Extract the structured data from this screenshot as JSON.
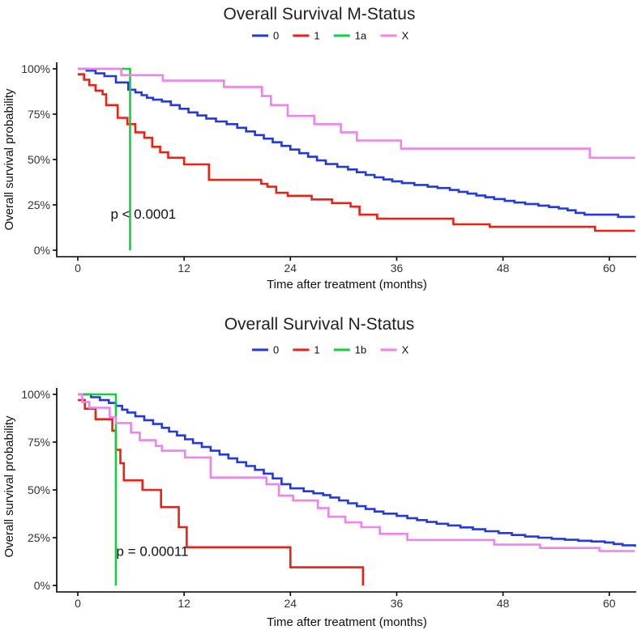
{
  "page": {
    "background": "#ffffff"
  },
  "chart_data": [
    {
      "type": "line",
      "chart_kind": "kaplan-meier-step-survival",
      "title": "Overall Survival M-Status",
      "xlabel": "Time after treatment (months)",
      "ylabel": "Overall survival probability",
      "x_ticks": [
        0,
        12,
        24,
        36,
        48,
        60
      ],
      "y_tick_labels": [
        "0%",
        "25%",
        "50%",
        "75%",
        "100%"
      ],
      "xlim": [
        -2.4,
        63.1
      ],
      "ylim": [
        0,
        100
      ],
      "grid": false,
      "legend_position": "top",
      "pvalue": {
        "text": "p < 0.0001",
        "x": 3.7,
        "y": 20
      },
      "series": [
        {
          "name": "0",
          "color": "#2238e3",
          "points": [
            [
              0,
              100
            ],
            [
              1,
              99
            ],
            [
              2,
              97.5
            ],
            [
              3,
              96
            ],
            [
              4.3,
              92.5
            ],
            [
              5.7,
              88.5
            ],
            [
              6.5,
              87
            ],
            [
              7.2,
              85.5
            ],
            [
              7.8,
              84
            ],
            [
              8.5,
              83
            ],
            [
              9.5,
              82
            ],
            [
              10.5,
              80
            ],
            [
              11.5,
              78
            ],
            [
              12.5,
              76
            ],
            [
              13.5,
              74.3
            ],
            [
              14.5,
              72.6
            ],
            [
              15.6,
              71
            ],
            [
              16.8,
              69.5
            ],
            [
              18,
              67.5
            ],
            [
              19,
              65.5
            ],
            [
              20,
              63.5
            ],
            [
              21,
              61.5
            ],
            [
              22,
              59.5
            ],
            [
              23,
              57.5
            ],
            [
              24,
              55.5
            ],
            [
              25,
              53.5
            ],
            [
              26,
              51.5
            ],
            [
              27,
              49.5
            ],
            [
              28,
              47.5
            ],
            [
              29.3,
              46
            ],
            [
              30.5,
              44.5
            ],
            [
              31.5,
              43
            ],
            [
              32.5,
              41.5
            ],
            [
              33.5,
              40.2
            ],
            [
              34.5,
              39
            ],
            [
              35.5,
              38
            ],
            [
              36.6,
              37
            ],
            [
              38,
              36
            ],
            [
              39.5,
              35
            ],
            [
              40.6,
              34.3
            ],
            [
              42,
              33.2
            ],
            [
              43,
              32.2
            ],
            [
              44,
              31.2
            ],
            [
              45,
              30.2
            ],
            [
              46,
              29.2
            ],
            [
              47,
              28.2
            ],
            [
              48.2,
              27.2
            ],
            [
              49.3,
              26.3
            ],
            [
              50.5,
              25.5
            ],
            [
              52,
              24.6
            ],
            [
              53.2,
              23.8
            ],
            [
              54.3,
              23
            ],
            [
              55.3,
              22
            ],
            [
              56.2,
              20.6
            ],
            [
              57.2,
              19.6
            ],
            [
              61,
              18.4
            ],
            [
              62.9,
              18.4
            ]
          ]
        },
        {
          "name": "1",
          "color": "#ef2011",
          "points": [
            [
              0,
              97
            ],
            [
              0.7,
              94
            ],
            [
              1.3,
              91
            ],
            [
              2,
              88
            ],
            [
              2.8,
              86
            ],
            [
              3.2,
              80
            ],
            [
              4.5,
              73
            ],
            [
              5.6,
              69.5
            ],
            [
              6.5,
              65
            ],
            [
              7.5,
              62
            ],
            [
              8.4,
              57
            ],
            [
              9.3,
              54
            ],
            [
              10.2,
              51
            ],
            [
              12,
              47.3
            ],
            [
              14.8,
              38.8
            ],
            [
              20.7,
              36.6
            ],
            [
              21.4,
              35
            ],
            [
              22.4,
              31.7
            ],
            [
              23.7,
              30
            ],
            [
              26.4,
              28
            ],
            [
              28.7,
              26
            ],
            [
              30.8,
              24
            ],
            [
              31.8,
              19.6
            ],
            [
              33.8,
              17.4
            ],
            [
              42.4,
              14.3
            ],
            [
              46.5,
              12.9
            ],
            [
              58.4,
              10.7
            ],
            [
              62.9,
              10.7
            ]
          ]
        },
        {
          "name": "1a",
          "color": "#0cd33c",
          "points": [
            [
              0,
              100
            ],
            [
              5.9,
              0
            ]
          ]
        },
        {
          "name": "X",
          "color": "#ee82ee",
          "points": [
            [
              0,
              100
            ],
            [
              4.9,
              96.5
            ],
            [
              9.6,
              93.5
            ],
            [
              16.5,
              90
            ],
            [
              20.8,
              85
            ],
            [
              21.8,
              80
            ],
            [
              23.7,
              74
            ],
            [
              26.7,
              69.5
            ],
            [
              29.7,
              65
            ],
            [
              31.5,
              60.5
            ],
            [
              36.5,
              56
            ],
            [
              57.8,
              51
            ],
            [
              62.9,
              51
            ]
          ]
        }
      ]
    },
    {
      "type": "line",
      "chart_kind": "kaplan-meier-step-survival",
      "title": "Overall Survival N-Status",
      "xlabel": "Time after treatment (months)",
      "ylabel": "Overall survival probability",
      "x_ticks": [
        0,
        12,
        24,
        36,
        48,
        60
      ],
      "y_tick_labels": [
        "0%",
        "25%",
        "50%",
        "75%",
        "100%"
      ],
      "xlim": [
        -2.4,
        63.1
      ],
      "ylim": [
        0,
        100
      ],
      "grid": false,
      "legend_position": "top",
      "pvalue": {
        "text": "p = 0.00011",
        "x": 4.35,
        "y": 18
      },
      "series": [
        {
          "name": "0",
          "color": "#2238e3",
          "points": [
            [
              0,
              100
            ],
            [
              1.5,
              98.5
            ],
            [
              2.5,
              97
            ],
            [
              3.5,
              95.5
            ],
            [
              4.3,
              94
            ],
            [
              5,
              92
            ],
            [
              5.6,
              90.5
            ],
            [
              6.5,
              88.5
            ],
            [
              7.5,
              86.5
            ],
            [
              8.5,
              84.5
            ],
            [
              9.5,
              82.5
            ],
            [
              10.3,
              80.5
            ],
            [
              11.2,
              78.5
            ],
            [
              12.1,
              76.5
            ],
            [
              13,
              74.5
            ],
            [
              14,
              72.5
            ],
            [
              15,
              70.5
            ],
            [
              16,
              68.5
            ],
            [
              17,
              66.5
            ],
            [
              18,
              64.5
            ],
            [
              19,
              62.5
            ],
            [
              20,
              60.5
            ],
            [
              21,
              58.5
            ],
            [
              22,
              56
            ],
            [
              23,
              53
            ],
            [
              24,
              50.8
            ],
            [
              25.5,
              49.3
            ],
            [
              26.6,
              48.2
            ],
            [
              27.7,
              47.3
            ],
            [
              28.5,
              46
            ],
            [
              29.5,
              44.5
            ],
            [
              30.5,
              43
            ],
            [
              31.5,
              41.5
            ],
            [
              32.5,
              40
            ],
            [
              33.5,
              38.7
            ],
            [
              34.5,
              37.6
            ],
            [
              36,
              36.4
            ],
            [
              37.2,
              35.2
            ],
            [
              38.3,
              34.2
            ],
            [
              39.4,
              33.2
            ],
            [
              40.5,
              32.3
            ],
            [
              41.8,
              31.4
            ],
            [
              43.2,
              30.4
            ],
            [
              44.6,
              29.4
            ],
            [
              46,
              28.4
            ],
            [
              47.5,
              27.4
            ],
            [
              49,
              26.4
            ],
            [
              50.5,
              25.6
            ],
            [
              52,
              25
            ],
            [
              53.5,
              24.4
            ],
            [
              55,
              23.9
            ],
            [
              56.5,
              23.4
            ],
            [
              58,
              23
            ],
            [
              59.5,
              22.5
            ],
            [
              60.5,
              21.7
            ],
            [
              61.5,
              21
            ],
            [
              62.9,
              20.2
            ]
          ]
        },
        {
          "name": "1",
          "color": "#ef2011",
          "points": [
            [
              0,
              97
            ],
            [
              0.8,
              92.5
            ],
            [
              2,
              87
            ],
            [
              3.9,
              81
            ],
            [
              4.3,
              71
            ],
            [
              4.8,
              64
            ],
            [
              5.2,
              55
            ],
            [
              7.3,
              50
            ],
            [
              9.4,
              41
            ],
            [
              11.4,
              30.5
            ],
            [
              12.3,
              20
            ],
            [
              24,
              9.5
            ],
            [
              32.2,
              0
            ]
          ]
        },
        {
          "name": "1b",
          "color": "#0cd33c",
          "points": [
            [
              0,
              100
            ],
            [
              4.3,
              0
            ]
          ]
        },
        {
          "name": "X",
          "color": "#ee82ee",
          "points": [
            [
              0,
              100
            ],
            [
              0.5,
              96
            ],
            [
              1.3,
              93
            ],
            [
              3.6,
              88
            ],
            [
              4.3,
              85
            ],
            [
              6,
              80
            ],
            [
              7,
              76
            ],
            [
              8.8,
              73
            ],
            [
              9.5,
              70.5
            ],
            [
              12.1,
              67
            ],
            [
              15,
              56.5
            ],
            [
              21.3,
              53
            ],
            [
              22.7,
              47
            ],
            [
              24.3,
              44.5
            ],
            [
              27.1,
              40.5
            ],
            [
              28.3,
              36
            ],
            [
              30.2,
              33
            ],
            [
              32,
              30.5
            ],
            [
              34.1,
              27
            ],
            [
              37.2,
              23.8
            ],
            [
              47,
              21.4
            ],
            [
              52.2,
              19.6
            ],
            [
              58.9,
              18
            ],
            [
              62.9,
              18
            ]
          ]
        }
      ]
    }
  ]
}
